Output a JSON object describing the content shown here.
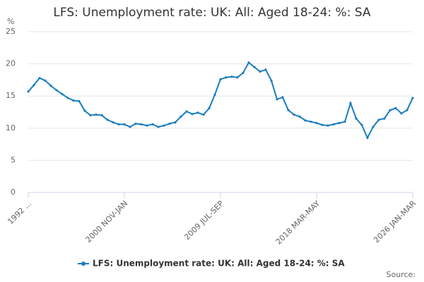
{
  "chart_data": {
    "type": "line",
    "title": "LFS: Unemployment rate: UK: All: Aged 18-24: %: SA",
    "y_unit": "%",
    "source": "Source:",
    "categories": [
      "1992 ...",
      null,
      null,
      null,
      null,
      null,
      null,
      null,
      null,
      null,
      null,
      null,
      null,
      null,
      null,
      null,
      null,
      "2000 NOV-JAN",
      null,
      null,
      null,
      null,
      null,
      null,
      null,
      null,
      null,
      null,
      null,
      null,
      null,
      null,
      null,
      null,
      "2009 JUL-SEP",
      null,
      null,
      null,
      null,
      null,
      null,
      null,
      null,
      null,
      null,
      null,
      null,
      null,
      null,
      null,
      null,
      "2018 MAR-MAY",
      null,
      null,
      null,
      null,
      null,
      null,
      null,
      null,
      null,
      null,
      null,
      null,
      null,
      null,
      null,
      null,
      "2026 JAN-MAR"
    ],
    "series": [
      {
        "name": "LFS: Unemployment rate: UK: All: Aged 18-24: %: SA",
        "color": "#1a7dbf",
        "values": [
          15.7,
          16.7,
          17.8,
          17.4,
          16.6,
          15.9,
          15.3,
          14.7,
          14.3,
          14.2,
          12.7,
          12.0,
          12.1,
          12.0,
          11.3,
          10.9,
          10.6,
          10.6,
          10.2,
          10.7,
          10.6,
          10.4,
          10.6,
          10.2,
          10.4,
          10.7,
          10.9,
          11.8,
          12.6,
          12.2,
          12.4,
          12.1,
          13.1,
          15.2,
          17.6,
          17.9,
          18.0,
          17.9,
          18.6,
          20.2,
          19.5,
          18.8,
          19.1,
          17.4,
          14.5,
          14.8,
          12.8,
          12.1,
          11.8,
          11.2,
          11.0,
          10.8,
          10.5,
          10.4,
          10.6,
          10.8,
          11.0,
          13.9,
          11.5,
          10.5,
          8.5,
          10.2,
          11.3,
          11.5,
          12.8,
          13.1,
          12.3,
          12.8,
          14.7
        ]
      }
    ],
    "ylim": [
      0,
      25
    ],
    "yticks": [
      0,
      5,
      10,
      15,
      20,
      25
    ],
    "grid": true,
    "legend": "bottom"
  }
}
